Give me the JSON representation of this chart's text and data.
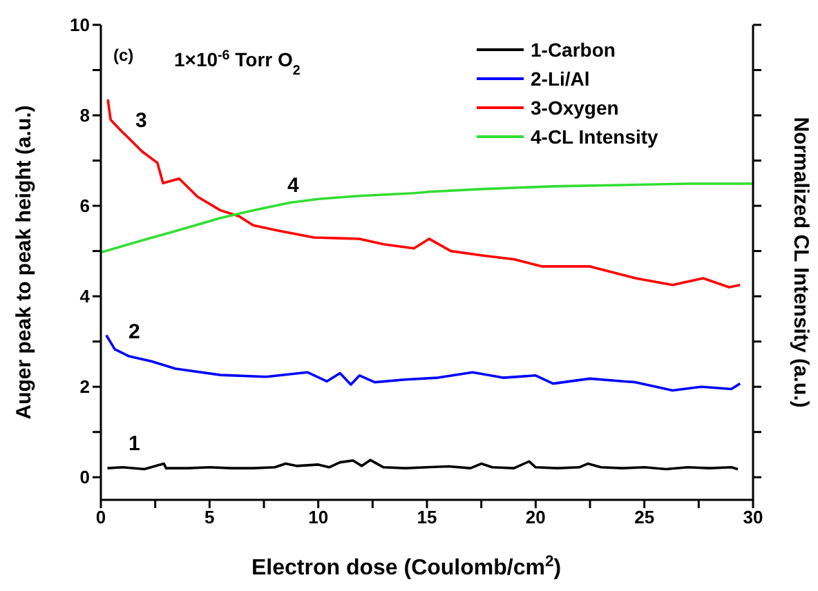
{
  "chart_data": {
    "type": "line",
    "xlabel": "Electron dose (Coulomb/cm$^{2}$)",
    "ylabel": "Auger peak to peak height (a.u.)",
    "y2label": "Normalized CL Intensity (a.u.)",
    "xlim": [
      0,
      30
    ],
    "xticks": [
      0,
      {
        "value": 2.5,
        "label": null
      },
      5,
      {
        "value": 7.5,
        "label": null
      },
      10,
      {
        "value": 12.5,
        "label": null
      },
      15,
      {
        "value": 17.5,
        "label": null
      },
      20,
      {
        "value": 22.5,
        "label": null
      },
      25,
      {
        "value": 27.5,
        "label": null
      },
      30
    ],
    "ylim": [
      -0.5,
      10
    ],
    "yticks": [
      0,
      {
        "value": 1,
        "label": null
      },
      2,
      {
        "value": 3,
        "label": null
      },
      4,
      {
        "value": 5,
        "label": null
      },
      6,
      {
        "value": 7,
        "label": null
      },
      8,
      {
        "value": 9,
        "label": null
      },
      10
    ],
    "legend": "top right",
    "marker": "none",
    "line_style": "solid",
    "annotations": [
      "(c)",
      "1×10$^{-6}$ Torr O$_{2}$",
      "1",
      "2",
      "3",
      "4"
    ],
    "series": [
      {
        "name": "1-Carbon",
        "color": "#000000",
        "x": [
          0.3,
          1,
          2,
          2.9,
          3,
          4,
          5,
          6,
          7,
          8,
          8.5,
          9,
          10,
          10.5,
          11,
          11.6,
          12,
          12.4,
          13,
          14,
          15,
          16,
          17,
          17.5,
          18,
          19,
          19.7,
          20,
          21,
          22,
          22.4,
          23,
          24,
          25,
          26,
          27,
          28,
          29,
          29.3
        ],
        "values": [
          0.2,
          0.22,
          0.18,
          0.3,
          0.2,
          0.2,
          0.22,
          0.2,
          0.2,
          0.22,
          0.3,
          0.25,
          0.28,
          0.22,
          0.33,
          0.37,
          0.25,
          0.38,
          0.22,
          0.2,
          0.22,
          0.24,
          0.2,
          0.3,
          0.22,
          0.2,
          0.35,
          0.22,
          0.2,
          0.22,
          0.3,
          0.22,
          0.2,
          0.22,
          0.18,
          0.22,
          0.2,
          0.22,
          0.18
        ]
      },
      {
        "name": "2-Li/Al",
        "color": "#0000ff",
        "x": [
          0.25,
          0.64,
          1.27,
          2.35,
          3.43,
          5.5,
          7.6,
          9.5,
          10.4,
          11,
          11.5,
          11.9,
          12.6,
          14,
          15.5,
          17.1,
          18.5,
          20,
          20.8,
          22.5,
          24,
          24.6,
          26.3,
          27.6,
          29,
          29.4
        ],
        "values": [
          3.14,
          2.83,
          2.68,
          2.56,
          2.4,
          2.26,
          2.22,
          2.32,
          2.12,
          2.3,
          2.05,
          2.25,
          2.1,
          2.16,
          2.2,
          2.32,
          2.2,
          2.25,
          2.07,
          2.18,
          2.12,
          2.1,
          1.92,
          2.0,
          1.95,
          2.07
        ]
      },
      {
        "name": "3-Oxygen",
        "color": "#ff0000",
        "x": [
          0.32,
          0.45,
          0.95,
          1.27,
          1.9,
          2.6,
          2.86,
          3.6,
          4.45,
          5.5,
          6.36,
          7.0,
          8.07,
          9.8,
          11.9,
          13.0,
          14.4,
          15.1,
          16.1,
          17.6,
          19,
          20.3,
          22.5,
          24.6,
          26.3,
          27.7,
          28.9,
          29.4
        ],
        "values": [
          8.35,
          7.9,
          7.65,
          7.5,
          7.2,
          6.95,
          6.5,
          6.6,
          6.2,
          5.9,
          5.77,
          5.57,
          5.46,
          5.3,
          5.27,
          5.15,
          5.06,
          5.27,
          5.0,
          4.9,
          4.82,
          4.66,
          4.66,
          4.4,
          4.25,
          4.4,
          4.2,
          4.25
        ]
      },
      {
        "name": "4-CL Intensity",
        "color": "#33dd33",
        "x": [
          0,
          2,
          4,
          5.5,
          7,
          8.7,
          10,
          11.9,
          14.4,
          15.1,
          17.5,
          20.8,
          24,
          27.1,
          30
        ],
        "values": [
          4.97,
          5.25,
          5.52,
          5.73,
          5.9,
          6.07,
          6.15,
          6.22,
          6.28,
          6.31,
          6.37,
          6.43,
          6.46,
          6.49,
          6.49
        ]
      }
    ]
  }
}
